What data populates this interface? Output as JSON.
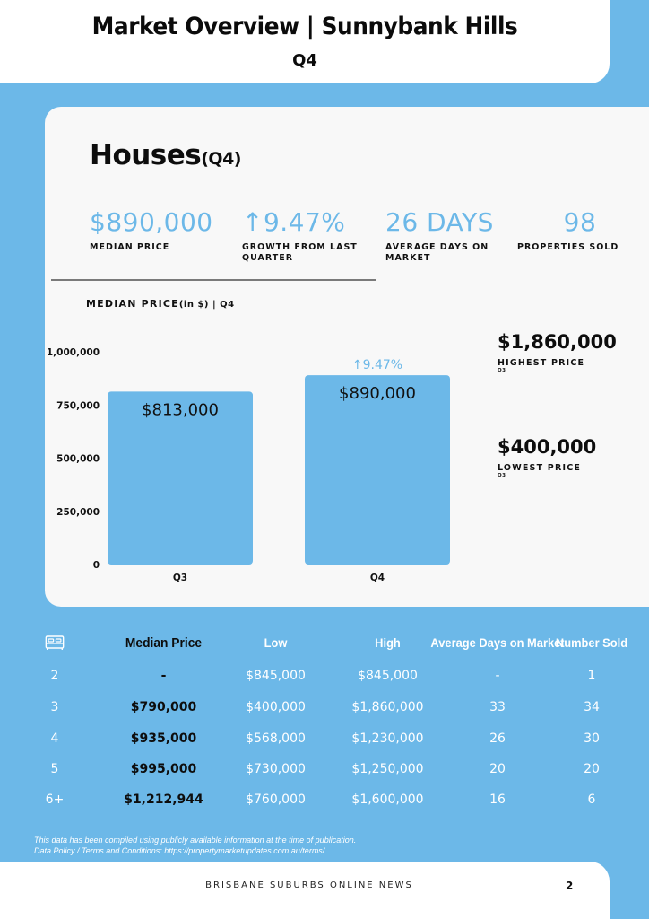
{
  "header": {
    "title": "Market Overview | Sunnybank Hills",
    "subtitle": "Q4"
  },
  "section": {
    "title": "Houses",
    "title_suffix": "(Q4)"
  },
  "stats": [
    {
      "value": "$890,000",
      "label": "MEDIAN PRICE"
    },
    {
      "value": "↑9.47%",
      "label": "GROWTH FROM LAST QUARTER"
    },
    {
      "value": "26 DAYS",
      "label": "AVERAGE DAYS ON MARKET"
    },
    {
      "value": "98",
      "label": "PROPERTIES SOLD"
    }
  ],
  "chart_heading": {
    "main": "MEDIAN PRICE",
    "small": "(in $)",
    "tail": " | Q4"
  },
  "chart_data": {
    "type": "bar",
    "categories": [
      "Q3",
      "Q4"
    ],
    "values": [
      813000,
      890000
    ],
    "data_labels": [
      "$813,000",
      "$890,000"
    ],
    "annotation": "↑9.47%",
    "yticks": [
      "0",
      "250,000",
      "500,000",
      "750,000",
      "1,000,000"
    ],
    "ytick_values": [
      0,
      250000,
      500000,
      750000,
      1000000
    ],
    "ylim": [
      0,
      1000000
    ],
    "bar_color": "#6cb8e8",
    "grid": false
  },
  "side_stats": {
    "highest": {
      "value": "$1,860,000",
      "label": "HIGHEST PRICE",
      "sub": "Q3"
    },
    "lowest": {
      "value": "$400,000",
      "label": "LOWEST PRICE",
      "sub": "Q3"
    }
  },
  "table": {
    "icon": "bed-icon",
    "headers": [
      "Median Price",
      "Low",
      "High",
      "Average Days on Market",
      "Number Sold"
    ],
    "rows": [
      [
        "2",
        "-",
        "$845,000",
        "$845,000",
        "-",
        "1"
      ],
      [
        "3",
        "$790,000",
        "$400,000",
        "$1,860,000",
        "33",
        "34"
      ],
      [
        "4",
        "$935,000",
        "$568,000",
        "$1,230,000",
        "26",
        "30"
      ],
      [
        "5",
        "$995,000",
        "$730,000",
        "$1,250,000",
        "20",
        "20"
      ],
      [
        "6+",
        "$1,212,944",
        "$760,000",
        "$1,600,000",
        "16",
        "6"
      ]
    ]
  },
  "footnote": {
    "line1": "This data has been compiled using publicly available information at the time of publication.",
    "line2": "Data Policy / Terms and Conditions: https://propertymarketupdates.com.au/terms/"
  },
  "footer": {
    "brand": "BRISBANE SUBURBS ONLINE NEWS",
    "page": "2"
  },
  "colors": {
    "accent": "#6cb8e8",
    "card": "#f8f8f8",
    "text": "#111111"
  }
}
